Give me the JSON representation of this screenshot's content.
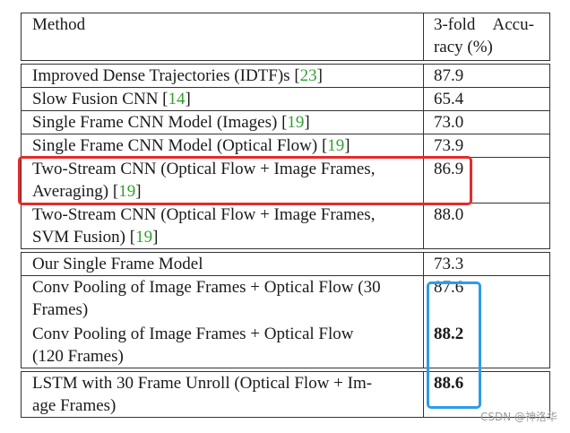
{
  "header": {
    "method": "Method",
    "acc_line1_a": "3-fold",
    "acc_line1_b": "Accu-",
    "acc_line2": "racy (%)"
  },
  "group1": [
    {
      "text": "Improved Dense Trajectories (IDTF)s [",
      "ref": "23",
      "tail": "]",
      "value": "87.9"
    },
    {
      "text": "Slow Fusion CNN [",
      "ref": "14",
      "tail": "]",
      "value": "65.4"
    },
    {
      "text": "Single Frame CNN Model (Images) [",
      "ref": "19",
      "tail": "]",
      "value": "73.0"
    },
    {
      "text": "Single Frame CNN Model (Optical Flow) [",
      "ref": "19",
      "tail": "]",
      "value": "73.9"
    },
    {
      "line1": "Two-Stream CNN (Optical Flow + Image Frames,",
      "line2a": "Averaging) [",
      "ref": "19",
      "tail": "]",
      "value": "86.9"
    },
    {
      "line1": "Two-Stream CNN (Optical Flow + Image Frames,",
      "line2a": "SVM Fusion) [",
      "ref": "19",
      "tail": "]",
      "value": "88.0"
    }
  ],
  "group2": [
    {
      "text": "Our Single Frame Model",
      "value": "73.3"
    },
    {
      "line1": "Conv Pooling of Image Frames + Optical Flow (30",
      "line2": "Frames)",
      "value": "87.6"
    },
    {
      "line1": "Conv Pooling of Image Frames + Optical Flow",
      "line2": "(120 Frames)",
      "value": "88.2"
    }
  ],
  "group3": [
    {
      "line1": "LSTM with 30 Frame Unroll (Optical Flow + Im-",
      "line2": "age Frames)",
      "value": "88.6"
    }
  ],
  "watermark": "CSDN @神洛华",
  "colors": {
    "highlight_red": "#e32b2b",
    "highlight_blue": "#2d9be8",
    "reference_green": "#2fa02f"
  }
}
